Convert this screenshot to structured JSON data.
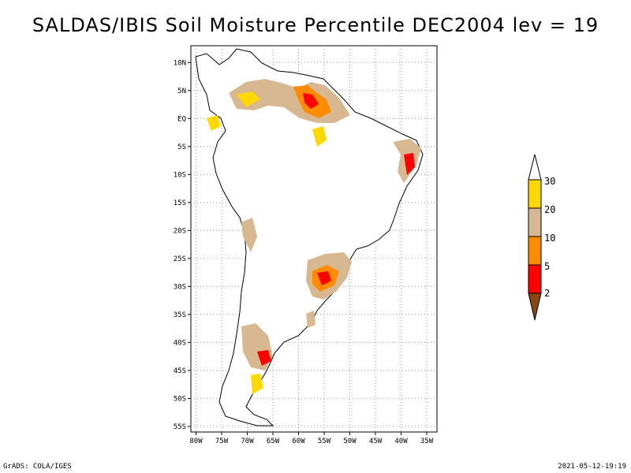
{
  "title": "SALDAS/IBIS Soil Moisture Percentile DEC2004 lev = 19",
  "footer": {
    "left": "GrADS: COLA/IGES",
    "right": "2021-05-12-19:19"
  },
  "lat_labels": [
    "10N",
    "5N",
    "EQ",
    "5S",
    "10S",
    "15S",
    "20S",
    "25S",
    "30S",
    "35S",
    "40S",
    "45S",
    "50S",
    "55S"
  ],
  "lat_values": [
    10,
    5,
    0,
    -5,
    -10,
    -15,
    -20,
    -25,
    -30,
    -35,
    -40,
    -45,
    -50,
    -55
  ],
  "lon_labels": [
    "80W",
    "75W",
    "70W",
    "65W",
    "60W",
    "55W",
    "50W",
    "45W",
    "40W",
    "35W"
  ],
  "lon_values": [
    -80,
    -75,
    -70,
    -65,
    -60,
    -55,
    -50,
    -45,
    -40,
    -35
  ],
  "extent": {
    "lon_min": -81,
    "lon_max": -33,
    "lat_min": -56,
    "lat_max": 13
  },
  "colorbar": {
    "labels": [
      "30",
      "20",
      "10",
      "5",
      "2"
    ],
    "colors": [
      "#ffffff",
      "#ffd800",
      "#d8b890",
      "#ff8c00",
      "#ff0000",
      "#8b4513"
    ]
  },
  "colors": {
    "grid": "#999999",
    "coast": "#000000"
  }
}
